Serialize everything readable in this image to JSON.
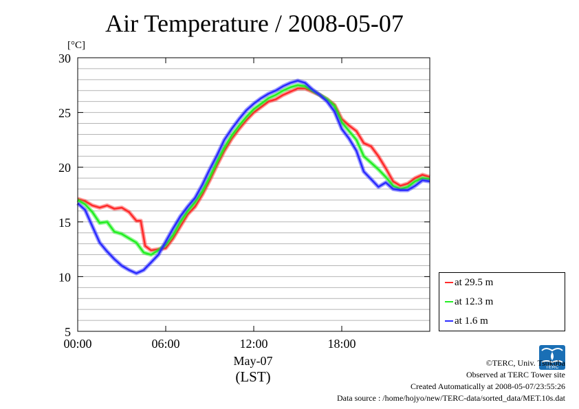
{
  "title": "Air Temperature / 2008-05-07",
  "footer": {
    "copyright": "©TERC, Univ. Tsukuba",
    "observed": "Observed at TERC Tower site",
    "created": "Created Automatically at 2008-05-07/23:55:26",
    "source": "Data source : /home/hojyo/new/TERC-data/sorted_data/MET.10s.dat"
  },
  "logo_text": "TERC",
  "chart_data": {
    "type": "line",
    "title": "Air Temperature / 2008-05-07",
    "ylabel": "[°C]",
    "xlabel_date": "May-07",
    "xlabel_unit": "(LST)",
    "xlim": [
      0,
      24
    ],
    "ylim": [
      5,
      30
    ],
    "x_ticks": [
      0,
      6,
      12,
      18
    ],
    "x_tick_labels": [
      "00:00",
      "06:00",
      "12:00",
      "18:00"
    ],
    "y_ticks": [
      5,
      10,
      15,
      20,
      25,
      30
    ],
    "y_tick_labels": [
      "5",
      "10",
      "15",
      "20",
      "25",
      "30"
    ],
    "grid": true,
    "legend_position": "right-bottom",
    "series": [
      {
        "name": "at 29.5 m",
        "color": "#ff2a2a",
        "points": [
          [
            0,
            17.1
          ],
          [
            0.5,
            16.9
          ],
          [
            1,
            16.5
          ],
          [
            1.5,
            16.3
          ],
          [
            2,
            16.5
          ],
          [
            2.5,
            16.2
          ],
          [
            3,
            16.3
          ],
          [
            3.5,
            15.9
          ],
          [
            4,
            15.1
          ],
          [
            4.3,
            15.1
          ],
          [
            4.6,
            12.8
          ],
          [
            5,
            12.4
          ],
          [
            5.5,
            12.5
          ],
          [
            6,
            12.6
          ],
          [
            6.5,
            13.5
          ],
          [
            7,
            14.6
          ],
          [
            7.5,
            15.7
          ],
          [
            8,
            16.4
          ],
          [
            8.5,
            17.5
          ],
          [
            9,
            18.8
          ],
          [
            9.5,
            20.2
          ],
          [
            10,
            21.5
          ],
          [
            10.5,
            22.6
          ],
          [
            11,
            23.5
          ],
          [
            11.5,
            24.3
          ],
          [
            12,
            25.0
          ],
          [
            12.5,
            25.5
          ],
          [
            13,
            26.0
          ],
          [
            13.5,
            26.2
          ],
          [
            14,
            26.6
          ],
          [
            14.5,
            26.9
          ],
          [
            15,
            27.2
          ],
          [
            15.5,
            27.2
          ],
          [
            16,
            26.9
          ],
          [
            16.5,
            26.6
          ],
          [
            17,
            26.2
          ],
          [
            17.5,
            25.7
          ],
          [
            18,
            24.4
          ],
          [
            18.5,
            23.8
          ],
          [
            19,
            23.3
          ],
          [
            19.5,
            22.2
          ],
          [
            20,
            21.9
          ],
          [
            20.5,
            21.0
          ],
          [
            21,
            19.9
          ],
          [
            21.5,
            18.7
          ],
          [
            22,
            18.3
          ],
          [
            22.5,
            18.5
          ],
          [
            23,
            19.0
          ],
          [
            23.5,
            19.3
          ],
          [
            24,
            19.1
          ]
        ]
      },
      {
        "name": "at 12.3 m",
        "color": "#22ee22",
        "points": [
          [
            0,
            17.0
          ],
          [
            0.5,
            16.6
          ],
          [
            1,
            15.9
          ],
          [
            1.5,
            14.9
          ],
          [
            2,
            15.0
          ],
          [
            2.5,
            14.1
          ],
          [
            3,
            13.9
          ],
          [
            3.5,
            13.5
          ],
          [
            4,
            13.1
          ],
          [
            4.5,
            12.2
          ],
          [
            5,
            12.0
          ],
          [
            5.5,
            12.4
          ],
          [
            6,
            12.9
          ],
          [
            6.5,
            13.8
          ],
          [
            7,
            15.0
          ],
          [
            7.5,
            16.0
          ],
          [
            8,
            16.8
          ],
          [
            8.5,
            17.8
          ],
          [
            9,
            19.1
          ],
          [
            9.5,
            20.5
          ],
          [
            10,
            21.8
          ],
          [
            10.5,
            22.9
          ],
          [
            11,
            23.8
          ],
          [
            11.5,
            24.6
          ],
          [
            12,
            25.3
          ],
          [
            12.5,
            25.8
          ],
          [
            13,
            26.3
          ],
          [
            13.5,
            26.6
          ],
          [
            14,
            27.0
          ],
          [
            14.5,
            27.3
          ],
          [
            15,
            27.5
          ],
          [
            15.5,
            27.4
          ],
          [
            16,
            27.0
          ],
          [
            16.5,
            26.6
          ],
          [
            17,
            26.2
          ],
          [
            17.5,
            25.6
          ],
          [
            18,
            24.1
          ],
          [
            18.5,
            23.3
          ],
          [
            19,
            22.5
          ],
          [
            19.5,
            21.0
          ],
          [
            20,
            20.4
          ],
          [
            20.5,
            19.8
          ],
          [
            21,
            19.1
          ],
          [
            21.5,
            18.3
          ],
          [
            22,
            18.0
          ],
          [
            22.5,
            18.2
          ],
          [
            23,
            18.7
          ],
          [
            23.5,
            19.0
          ],
          [
            24,
            18.9
          ]
        ]
      },
      {
        "name": "at 1.6 m",
        "color": "#2a2aff",
        "points": [
          [
            0,
            16.7
          ],
          [
            0.5,
            16.1
          ],
          [
            1,
            14.6
          ],
          [
            1.5,
            13.1
          ],
          [
            2,
            12.3
          ],
          [
            2.5,
            11.6
          ],
          [
            3,
            11.0
          ],
          [
            3.5,
            10.6
          ],
          [
            4,
            10.3
          ],
          [
            4.5,
            10.6
          ],
          [
            5,
            11.3
          ],
          [
            5.5,
            12.0
          ],
          [
            6,
            13.2
          ],
          [
            6.5,
            14.4
          ],
          [
            7,
            15.5
          ],
          [
            7.5,
            16.4
          ],
          [
            8,
            17.2
          ],
          [
            8.5,
            18.4
          ],
          [
            9,
            19.8
          ],
          [
            9.5,
            21.1
          ],
          [
            10,
            22.5
          ],
          [
            10.5,
            23.5
          ],
          [
            11,
            24.4
          ],
          [
            11.5,
            25.2
          ],
          [
            12,
            25.8
          ],
          [
            12.5,
            26.3
          ],
          [
            13,
            26.7
          ],
          [
            13.5,
            27.0
          ],
          [
            14,
            27.4
          ],
          [
            14.5,
            27.7
          ],
          [
            15,
            27.9
          ],
          [
            15.5,
            27.7
          ],
          [
            16,
            27.1
          ],
          [
            16.5,
            26.6
          ],
          [
            17,
            26.0
          ],
          [
            17.5,
            25.1
          ],
          [
            18,
            23.5
          ],
          [
            18.5,
            22.6
          ],
          [
            19,
            21.5
          ],
          [
            19.5,
            19.6
          ],
          [
            20,
            18.9
          ],
          [
            20.5,
            18.2
          ],
          [
            21,
            18.6
          ],
          [
            21.5,
            18.0
          ],
          [
            22,
            17.9
          ],
          [
            22.5,
            17.9
          ],
          [
            23,
            18.3
          ],
          [
            23.5,
            18.8
          ],
          [
            24,
            18.7
          ]
        ]
      }
    ]
  }
}
